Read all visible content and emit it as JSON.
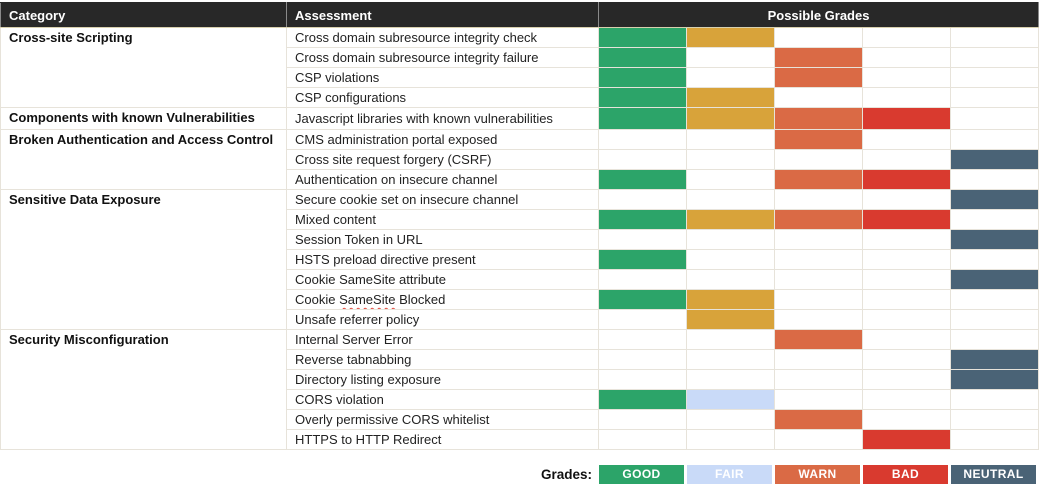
{
  "palette": {
    "good": "#2CA469",
    "fair": "#C9DAF8",
    "amber": "#D8A33A",
    "warn": "#DA6A45",
    "bad": "#D93A2F",
    "neutral": "#4A6376",
    "header_bg": "#282828",
    "header_text": "#FFFFFF",
    "grid_line": "#E7E3DA",
    "squiggle_red": "#E4493F"
  },
  "header": {
    "category": "Category",
    "assessment": "Assessment",
    "possible_grades": "Possible Grades"
  },
  "legend": {
    "label": "Grades:",
    "items": [
      {
        "label": "GOOD",
        "token": "good"
      },
      {
        "label": "FAIR",
        "token": "fair"
      },
      {
        "label": "WARN",
        "token": "warn"
      },
      {
        "label": "BAD",
        "token": "bad"
      },
      {
        "label": "NEUTRAL",
        "token": "neutral"
      }
    ]
  },
  "categories": [
    {
      "name": "Cross-site Scripting",
      "rows": [
        {
          "assessment": "Cross domain subresource integrity check",
          "grades": [
            "good",
            "amber",
            null,
            null,
            null
          ]
        },
        {
          "assessment": "Cross domain subresource integrity failure",
          "grades": [
            "good",
            null,
            "warn",
            null,
            null
          ]
        },
        {
          "assessment": "CSP violations",
          "grades": [
            "good",
            null,
            "warn",
            null,
            null
          ]
        },
        {
          "assessment": "CSP configurations",
          "grades": [
            "good",
            "amber",
            null,
            null,
            null
          ]
        }
      ]
    },
    {
      "name": "Components with known Vulnerabilities",
      "rows": [
        {
          "assessment": "Javascript libraries with known vulnerabilities",
          "grades": [
            "good",
            "amber",
            "warn",
            "bad",
            null
          ]
        }
      ]
    },
    {
      "name": "Broken Authentication and Access Control",
      "rows": [
        {
          "assessment": "CMS administration portal exposed",
          "grades": [
            null,
            null,
            "warn",
            null,
            null
          ]
        },
        {
          "assessment": "Cross site request forgery (CSRF)",
          "grades": [
            null,
            null,
            null,
            null,
            "neutral"
          ]
        },
        {
          "assessment": "Authentication on insecure channel",
          "grades": [
            "good",
            null,
            "warn",
            "bad",
            null
          ]
        }
      ]
    },
    {
      "name": "Sensitive Data Exposure",
      "rows": [
        {
          "assessment": "Secure cookie set on insecure channel",
          "grades": [
            null,
            null,
            null,
            null,
            "neutral"
          ]
        },
        {
          "assessment": "Mixed content",
          "grades": [
            "good",
            "amber",
            "warn",
            "bad",
            null
          ]
        },
        {
          "assessment": "Session Token in URL",
          "grades": [
            null,
            null,
            null,
            null,
            "neutral"
          ]
        },
        {
          "assessment": "HSTS preload directive present",
          "grades": [
            "good",
            null,
            null,
            null,
            null
          ]
        },
        {
          "assessment": "Cookie SameSite attribute",
          "grades": [
            null,
            null,
            null,
            null,
            "neutral"
          ]
        },
        {
          "assessment": "Cookie SameSite Blocked",
          "grades": [
            "good",
            "amber",
            null,
            null,
            null
          ],
          "spellcheck_word": "SameSite"
        },
        {
          "assessment": "Unsafe referrer policy",
          "grades": [
            null,
            "amber",
            null,
            null,
            null
          ]
        }
      ]
    },
    {
      "name": "Security Misconfiguration",
      "rows": [
        {
          "assessment": "Internal Server Error",
          "grades": [
            null,
            null,
            "warn",
            null,
            null
          ]
        },
        {
          "assessment": "Reverse tabnabbing",
          "grades": [
            null,
            null,
            null,
            null,
            "neutral"
          ]
        },
        {
          "assessment": "Directory listing exposure",
          "grades": [
            null,
            null,
            null,
            null,
            "neutral"
          ]
        },
        {
          "assessment": "CORS violation",
          "grades": [
            "good",
            "fair",
            null,
            null,
            null
          ]
        },
        {
          "assessment": "Overly permissive CORS whitelist",
          "grades": [
            null,
            null,
            "warn",
            null,
            null
          ]
        },
        {
          "assessment": "HTTPS to HTTP Redirect",
          "grades": [
            null,
            null,
            null,
            "bad",
            null
          ]
        }
      ]
    }
  ]
}
